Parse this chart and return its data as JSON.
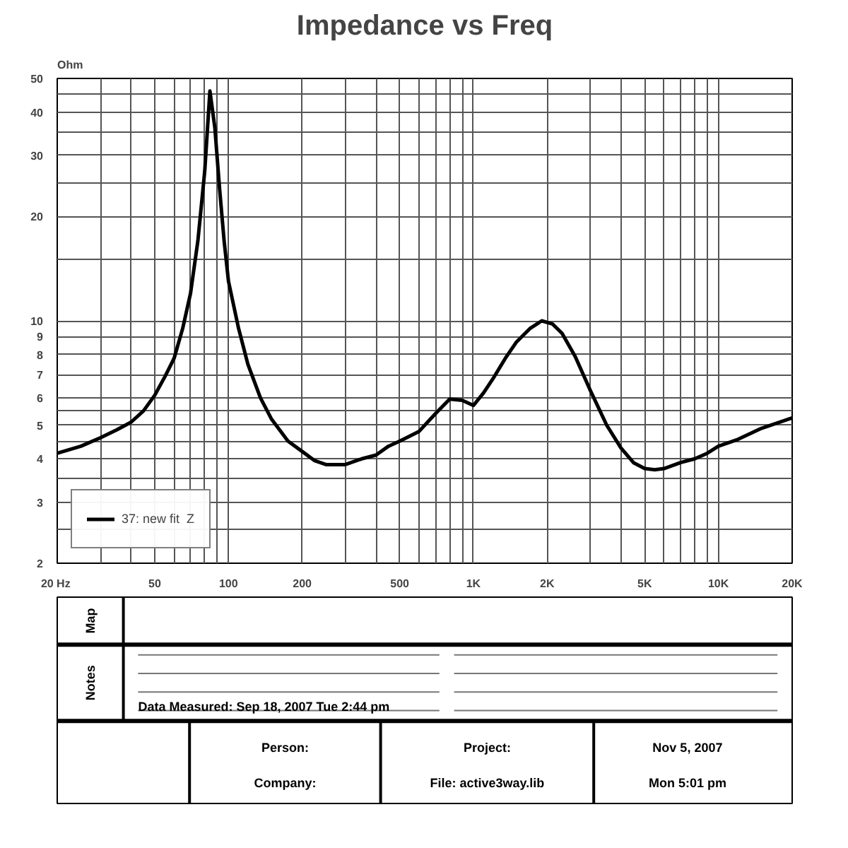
{
  "chart_data": {
    "type": "line",
    "title": "Impedance vs Freq",
    "ylabel": "Ohm",
    "log": "xy",
    "grid": true,
    "legend": "bottom left",
    "line_style": "solid",
    "x": [
      20,
      25,
      30,
      35,
      40,
      45,
      50,
      55,
      60,
      65,
      70,
      75,
      80,
      84,
      88,
      92,
      96,
      100,
      110,
      120,
      135,
      150,
      175,
      200,
      225,
      250,
      300,
      350,
      400,
      450,
      500,
      600,
      700,
      800,
      900,
      1000,
      1100,
      1200,
      1350,
      1500,
      1700,
      1900,
      2100,
      2300,
      2600,
      3000,
      3500,
      4000,
      4500,
      5000,
      5500,
      6000,
      7000,
      8000,
      9000,
      10000,
      12000,
      15000,
      20000
    ],
    "series": [
      {
        "name": "37: new fit  Z",
        "color": "#000000",
        "values": [
          4.15,
          4.35,
          4.6,
          4.85,
          5.1,
          5.5,
          6.1,
          6.9,
          7.8,
          9.5,
          12,
          17,
          27,
          46,
          36,
          24,
          17,
          13,
          9.5,
          7.5,
          6.0,
          5.2,
          4.5,
          4.2,
          3.95,
          3.85,
          3.85,
          4.0,
          4.1,
          4.35,
          4.5,
          4.8,
          5.4,
          5.95,
          5.9,
          5.7,
          6.2,
          6.8,
          7.8,
          8.7,
          9.5,
          10.0,
          9.8,
          9.2,
          7.9,
          6.3,
          5.0,
          4.3,
          3.9,
          3.75,
          3.72,
          3.75,
          3.9,
          4.0,
          4.15,
          4.35,
          4.55,
          4.9,
          5.25
        ]
      }
    ],
    "xlim": [
      20,
      20000
    ],
    "ylim": [
      2,
      50
    ],
    "xticks": [
      {
        "value": 20,
        "label": "20  Hz"
      },
      {
        "value": 30,
        "label": null
      },
      {
        "value": 40,
        "label": null
      },
      50,
      {
        "value": 60,
        "label": null
      },
      {
        "value": 70,
        "label": null
      },
      {
        "value": 80,
        "label": null
      },
      {
        "value": 90,
        "label": null
      },
      100,
      200,
      {
        "value": 300,
        "label": null
      },
      {
        "value": 400,
        "label": null
      },
      500,
      {
        "value": 600,
        "label": null
      },
      {
        "value": 700,
        "label": null
      },
      {
        "value": 800,
        "label": null
      },
      {
        "value": 900,
        "label": null
      },
      {
        "value": 1000,
        "label": "1K"
      },
      {
        "value": 2000,
        "label": "2K"
      },
      {
        "value": 3000,
        "label": null
      },
      {
        "value": 4000,
        "label": null
      },
      {
        "value": 5000,
        "label": "5K"
      },
      {
        "value": 6000,
        "label": null
      },
      {
        "value": 7000,
        "label": null
      },
      {
        "value": 8000,
        "label": null
      },
      {
        "value": 9000,
        "label": null
      },
      {
        "value": 10000,
        "label": "10K"
      },
      {
        "value": 20000,
        "label": "20K"
      }
    ],
    "yticks": [
      2,
      {
        "value": 2.5,
        "label": null
      },
      3,
      {
        "value": 3.5,
        "label": null
      },
      4,
      {
        "value": 4.5,
        "label": null
      },
      5,
      {
        "value": 5.5,
        "label": null
      },
      6,
      7,
      8,
      9,
      10,
      {
        "value": 15,
        "label": null
      },
      20,
      {
        "value": 25,
        "label": null
      },
      30,
      {
        "value": 35,
        "label": null
      },
      40,
      {
        "value": 45,
        "label": null
      },
      50
    ],
    "annotations": [
      "Map",
      "Notes",
      "Data Measured: Sep 18, 2007  Tue  2:44 pm",
      "Person:",
      "Company:",
      "Project:",
      "File: active3way.lib",
      "Nov  5, 2007",
      "Mon  5:01 pm"
    ]
  }
}
